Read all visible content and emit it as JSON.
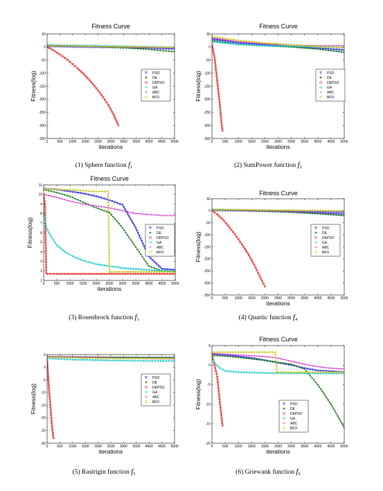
{
  "chart_data": [
    {
      "type": "line",
      "title": "Fitness Curve",
      "xlabel": "iterations",
      "ylabel": "Fitness(log)",
      "xlim": [
        0,
        5000
      ],
      "ylim": [
        -350,
        50
      ],
      "xticks": [
        0,
        500,
        1000,
        1500,
        2000,
        2500,
        3000,
        3500,
        4000,
        4500,
        5000
      ],
      "yticks": [
        50,
        0,
        -50,
        -100,
        -150,
        -200,
        -250,
        -300,
        -350
      ],
      "caption": {
        "prefix": "(1) Sphere function ",
        "f": "f",
        "sub": "1"
      },
      "legend": "right",
      "series": [
        {
          "name": "PSO",
          "x": [
            0,
            1000,
            2000,
            3000,
            4000,
            5000
          ],
          "y": [
            2,
            0,
            -1,
            -3,
            -5,
            -8
          ]
        },
        {
          "name": "DE",
          "x": [
            0,
            1000,
            2000,
            3000,
            4000,
            5000
          ],
          "y": [
            5,
            3,
            1,
            -3,
            -9,
            -18
          ]
        },
        {
          "name": "DEPSO",
          "x": [
            0,
            200,
            400,
            600,
            800,
            1000,
            1200,
            1400,
            1600,
            1800,
            2000,
            2200,
            2400,
            2600,
            2800
          ],
          "y": [
            0,
            -10,
            -22,
            -35,
            -49,
            -65,
            -82,
            -100,
            -120,
            -142,
            -166,
            -192,
            -222,
            -256,
            -300
          ]
        },
        {
          "name": "GA",
          "x": [
            0,
            1000,
            2000,
            3000,
            4000,
            5000
          ],
          "y": [
            8,
            6,
            5,
            3,
            1,
            -1
          ]
        },
        {
          "name": "ABC",
          "x": [
            0,
            1000,
            2000,
            3000,
            4000,
            5000
          ],
          "y": [
            6,
            4,
            2,
            0,
            -2,
            -4
          ]
        },
        {
          "name": "BFO",
          "x": [
            0,
            1000,
            2000,
            3000,
            4000,
            5000
          ],
          "y": [
            4,
            3,
            2,
            1,
            0,
            -2
          ]
        }
      ]
    },
    {
      "type": "line",
      "title": "Fitness Curve",
      "xlabel": "iterations",
      "ylabel": "Fitness(log)",
      "xlim": [
        0,
        5000
      ],
      "ylim": [
        -350,
        50
      ],
      "xticks": [
        0,
        500,
        1000,
        1500,
        2000,
        2500,
        3000,
        3500,
        4000,
        4500,
        5000
      ],
      "yticks": [
        50,
        0,
        -50,
        -100,
        -150,
        -200,
        -250,
        -300,
        -350
      ],
      "caption": {
        "prefix": "(2) SumPower function ",
        "f": "f",
        "sub": "2"
      },
      "legend": "right",
      "series": [
        {
          "name": "PSO",
          "x": [
            0,
            1000,
            2000,
            3000,
            4000,
            5000
          ],
          "y": [
            30,
            15,
            8,
            2,
            -5,
            -12
          ]
        },
        {
          "name": "DE",
          "x": [
            0,
            1000,
            2000,
            3000,
            4000,
            5000
          ],
          "y": [
            25,
            10,
            5,
            0,
            -8,
            -20
          ]
        },
        {
          "name": "DEPSO",
          "x": [
            0,
            100,
            200,
            300,
            350,
            400
          ],
          "y": [
            10,
            -40,
            -130,
            -220,
            -280,
            -320
          ]
        },
        {
          "name": "GA",
          "x": [
            0,
            1000,
            2000,
            3000,
            4000,
            5000
          ],
          "y": [
            20,
            10,
            5,
            3,
            1,
            -2
          ]
        },
        {
          "name": "ABC",
          "x": [
            0,
            1000,
            2000,
            3000,
            4000,
            5000
          ],
          "y": [
            35,
            20,
            12,
            8,
            5,
            5
          ]
        },
        {
          "name": "BFO",
          "x": [
            0,
            1000,
            2000,
            3000,
            4000,
            5000
          ],
          "y": [
            40,
            25,
            15,
            8,
            2,
            -2
          ]
        }
      ]
    },
    {
      "type": "line",
      "title": "Fitness Curve",
      "xlabel": "iterations",
      "ylabel": "Fitness(log)",
      "xlim": [
        0,
        5000
      ],
      "ylim": [
        1,
        11
      ],
      "xticks": [
        0,
        500,
        1000,
        1500,
        2000,
        2500,
        3000,
        3500,
        4000,
        4500,
        5000
      ],
      "yticks": [
        11,
        10,
        9,
        8,
        7,
        6,
        5,
        4,
        3,
        2,
        1
      ],
      "caption": {
        "prefix": "(3) Rosenbrock function ",
        "f": "f",
        "sub": "3"
      },
      "legend": "right",
      "series": [
        {
          "name": "PSO",
          "x": [
            0,
            500,
            1000,
            1500,
            2000,
            2500,
            3000,
            3500,
            4000,
            4500,
            5000
          ],
          "y": [
            10.6,
            10.5,
            10.3,
            10.1,
            9.8,
            9.4,
            8.9,
            6.5,
            3.5,
            2.2,
            2.1
          ]
        },
        {
          "name": "DE",
          "x": [
            0,
            500,
            1000,
            1500,
            2000,
            2500,
            3000,
            3500,
            4000,
            4500,
            5000
          ],
          "y": [
            10.5,
            10.2,
            9.8,
            9.2,
            8.6,
            8.1,
            6.5,
            4.5,
            2.5,
            2.0,
            1.9
          ]
        },
        {
          "name": "DEPSO",
          "x": [
            0,
            50,
            100,
            150,
            500,
            1000,
            2000,
            3000,
            4000,
            5000
          ],
          "y": [
            10.0,
            9.0,
            1.8,
            1.7,
            1.7,
            1.7,
            1.7,
            1.7,
            1.7,
            1.7
          ]
        },
        {
          "name": "GA",
          "x": [
            0,
            100,
            300,
            500,
            800,
            1200,
            1600,
            2000,
            2500,
            3000,
            3500,
            4000,
            4500,
            5000
          ],
          "y": [
            8.1,
            6.5,
            5.5,
            4.7,
            4.0,
            3.4,
            3.0,
            2.7,
            2.5,
            2.3,
            2.2,
            2.1,
            2.0,
            2.0
          ]
        },
        {
          "name": "ABC",
          "x": [
            0,
            500,
            1000,
            1500,
            2000,
            2500,
            3000,
            3500,
            4000,
            4500,
            5000
          ],
          "y": [
            10.0,
            9.7,
            9.3,
            9.0,
            8.8,
            8.6,
            8.3,
            8.0,
            7.9,
            7.8,
            7.8
          ]
        },
        {
          "name": "BFO",
          "x": [
            0,
            500,
            1000,
            1500,
            2000,
            2450,
            2500,
            2550,
            3000,
            3500,
            4000,
            4500,
            5000
          ],
          "y": [
            10.6,
            10.5,
            10.5,
            10.4,
            10.3,
            10.3,
            1.9,
            1.9,
            1.9,
            1.9,
            1.9,
            1.9,
            1.9
          ]
        }
      ]
    },
    {
      "type": "line",
      "title": "Fitness Curve",
      "xlabel": "iterations",
      "ylabel": "Fitness(log)",
      "xlim": [
        0,
        5000
      ],
      "ylim": [
        -350,
        50
      ],
      "xticks": [
        0,
        500,
        1000,
        1500,
        2000,
        2500,
        3000,
        3500,
        4000,
        4500,
        5000
      ],
      "yticks": [
        50,
        0,
        -50,
        -100,
        -150,
        -200,
        -250,
        -300,
        -350
      ],
      "caption": {
        "prefix": "(4) Quartic function ",
        "f": "f",
        "sub": "4"
      },
      "legend": "right",
      "series": [
        {
          "name": "PSO",
          "x": [
            0,
            1000,
            2000,
            3000,
            4000,
            5000
          ],
          "y": [
            2,
            0,
            -2,
            -5,
            -9,
            -14
          ]
        },
        {
          "name": "DE",
          "x": [
            0,
            1000,
            2000,
            3000,
            4000,
            5000
          ],
          "y": [
            3,
            1,
            -2,
            -6,
            -12,
            -20
          ]
        },
        {
          "name": "DEPSO",
          "x": [
            0,
            200,
            400,
            600,
            800,
            1000,
            1200,
            1400,
            1600,
            1800,
            2000
          ],
          "y": [
            0,
            -15,
            -35,
            -60,
            -88,
            -118,
            -150,
            -185,
            -225,
            -270,
            -315
          ]
        },
        {
          "name": "GA",
          "x": [
            0,
            1000,
            2000,
            3000,
            4000,
            5000
          ],
          "y": [
            6,
            4,
            2,
            0,
            -2,
            -4
          ]
        },
        {
          "name": "ABC",
          "x": [
            0,
            1000,
            2000,
            3000,
            4000,
            5000
          ],
          "y": [
            4,
            2,
            0,
            -2,
            -4,
            -6
          ]
        },
        {
          "name": "BFO",
          "x": [
            0,
            1000,
            2000,
            3000,
            4000,
            5000
          ],
          "y": [
            5,
            4,
            3,
            2,
            1,
            0
          ]
        }
      ]
    },
    {
      "type": "line",
      "title": "",
      "xlabel": "iterations",
      "ylabel": "Fitness(log)",
      "xlim": [
        0,
        5000
      ],
      "ylim": [
        -30,
        5
      ],
      "xticks": [
        0,
        500,
        1000,
        1500,
        2000,
        2500,
        3000,
        3500,
        4000,
        4500,
        5000
      ],
      "yticks": [
        5,
        0,
        -5,
        -10,
        -15,
        -20,
        -25,
        -30
      ],
      "caption": {
        "prefix": "(5) Rastrigin function ",
        "f": "f",
        "sub": "5"
      },
      "legend": "right",
      "series": [
        {
          "name": "PSO",
          "x": [
            0,
            1000,
            2000,
            3000,
            4000,
            5000
          ],
          "y": [
            4.0,
            3.9,
            3.8,
            3.8,
            3.8,
            3.8
          ]
        },
        {
          "name": "DE",
          "x": [
            0,
            1000,
            2000,
            3000,
            4000,
            5000
          ],
          "y": [
            4.2,
            4.1,
            4.0,
            3.9,
            3.8,
            3.8
          ]
        },
        {
          "name": "DEPSO",
          "x": [
            0,
            50,
            100,
            150,
            200,
            250
          ],
          "y": [
            3.5,
            -5,
            -11.5,
            -18,
            -24,
            -28
          ]
        },
        {
          "name": "GA",
          "x": [
            0,
            1000,
            2000,
            3000,
            4000,
            5000
          ],
          "y": [
            3.5,
            3.0,
            2.8,
            2.6,
            2.5,
            2.5
          ]
        },
        {
          "name": "ABC",
          "x": [
            0,
            1000,
            2000,
            3000,
            4000,
            5000
          ],
          "y": [
            4.3,
            4.1,
            3.9,
            3.6,
            3.4,
            3.3
          ]
        },
        {
          "name": "BFO",
          "x": [
            0,
            1000,
            2000,
            3000,
            4000,
            5000
          ],
          "y": [
            4.0,
            3.8,
            3.6,
            3.5,
            3.5,
            3.5
          ]
        }
      ]
    },
    {
      "type": "line",
      "title": "Fitness Curve",
      "xlabel": "iterations",
      "ylabel": "Fitness(log)",
      "xlim": [
        0,
        5000
      ],
      "ylim": [
        -20,
        5
      ],
      "xticks": [
        0,
        500,
        1000,
        1500,
        2000,
        2500,
        3000,
        3500,
        4000,
        4500,
        5000
      ],
      "yticks": [
        5,
        0,
        -5,
        -10,
        -15,
        -20
      ],
      "caption": {
        "prefix": "(6) Griewank function ",
        "f": "f",
        "sub": "6"
      },
      "legend": "center-right",
      "series": [
        {
          "name": "PSO",
          "x": [
            0,
            500,
            1000,
            1500,
            2000,
            2500,
            3000,
            3500,
            4000,
            4500,
            5000
          ],
          "y": [
            2.8,
            2.5,
            2.2,
            1.8,
            1.2,
            0.6,
            0.0,
            -0.8,
            -1.4,
            -1.6,
            -1.8
          ]
        },
        {
          "name": "DE",
          "x": [
            0,
            500,
            1000,
            1500,
            2000,
            2500,
            3000,
            3500,
            4000,
            4500,
            5000
          ],
          "y": [
            2.5,
            2.3,
            2.0,
            1.6,
            1.2,
            0.7,
            0.2,
            -1.0,
            -5.0,
            -10.0,
            -16.0
          ]
        },
        {
          "name": "DEPSO",
          "x": [
            0,
            100,
            200,
            300,
            400
          ],
          "y": [
            2.8,
            0.0,
            -3.0,
            -9.5,
            -15.5
          ]
        },
        {
          "name": "GA",
          "x": [
            0,
            100,
            300,
            500,
            1000,
            2000,
            3000,
            4000,
            5000
          ],
          "y": [
            2.0,
            0.5,
            -0.8,
            -1.5,
            -1.8,
            -2.0,
            -2.1,
            -2.1,
            -2.1
          ]
        },
        {
          "name": "ABC",
          "x": [
            0,
            500,
            1000,
            1500,
            2000,
            2500,
            3000,
            3500,
            4000,
            4500,
            5000
          ],
          "y": [
            3.0,
            2.8,
            2.6,
            2.4,
            2.2,
            1.8,
            1.0,
            0.2,
            -0.4,
            -0.8,
            -1.0
          ]
        },
        {
          "name": "BFO",
          "x": [
            0,
            500,
            1000,
            1500,
            2000,
            2400,
            2450,
            2500,
            3000,
            3500,
            4000,
            4500,
            5000
          ],
          "y": [
            3.3,
            3.3,
            3.3,
            3.3,
            3.3,
            3.3,
            -1.8,
            -1.8,
            -1.8,
            -1.8,
            -1.8,
            -1.8,
            -1.8
          ]
        }
      ]
    }
  ],
  "styles": {
    "PSO": {
      "color": "#2323e6",
      "marker": "triangle-down"
    },
    "DE": {
      "color": "#1e7a1e",
      "marker": "star"
    },
    "DEPSO": {
      "color": "#e61e1e",
      "marker": "square"
    },
    "GA": {
      "color": "#1ec8c8",
      "marker": "triangle-left"
    },
    "ABC": {
      "color": "#c81ec8",
      "marker": "plus"
    },
    "BFO": {
      "color": "#c8c81e",
      "marker": "diamond"
    }
  }
}
